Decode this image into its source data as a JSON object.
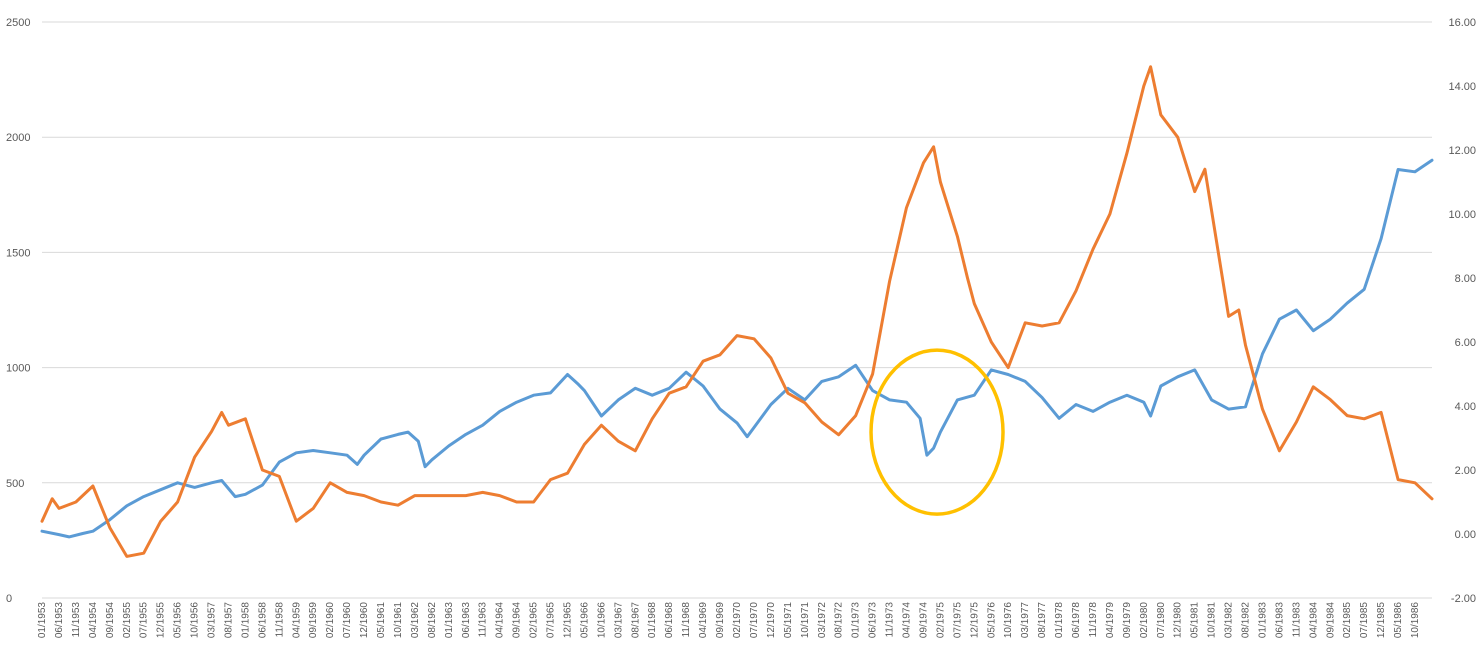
{
  "chart_data": {
    "type": "line",
    "title": "",
    "xlabel": "",
    "ylabel_left": "",
    "ylabel_right": "",
    "grid": true,
    "legend": "none",
    "x_start": "01/1953",
    "x_end": "03/1987",
    "x_tick_labels": [
      "01/1953",
      "06/1953",
      "11/1953",
      "04/1954",
      "09/1954",
      "02/1955",
      "07/1955",
      "12/1955",
      "05/1956",
      "10/1956",
      "03/1957",
      "08/1957",
      "01/1958",
      "06/1958",
      "11/1958",
      "04/1959",
      "09/1959",
      "02/1960",
      "07/1960",
      "12/1960",
      "05/1961",
      "10/1961",
      "03/1962",
      "08/1962",
      "01/1963",
      "06/1963",
      "11/1963",
      "04/1964",
      "09/1964",
      "02/1965",
      "07/1965",
      "12/1965",
      "05/1966",
      "10/1966",
      "03/1967",
      "08/1967",
      "01/1968",
      "06/1968",
      "11/1968",
      "04/1969",
      "09/1969",
      "02/1970",
      "07/1970",
      "12/1970",
      "05/1971",
      "10/1971",
      "03/1972",
      "08/1972",
      "01/1973",
      "06/1973",
      "11/1973",
      "04/1974",
      "09/1974",
      "02/1975",
      "07/1975",
      "12/1975",
      "05/1976",
      "10/1976",
      "03/1977",
      "08/1977",
      "01/1978",
      "06/1978",
      "11/1978",
      "04/1979",
      "09/1979",
      "02/1980",
      "07/1980",
      "12/1980",
      "05/1981",
      "10/1981",
      "03/1982",
      "08/1982",
      "01/1983",
      "06/1983",
      "11/1983",
      "04/1984",
      "09/1984",
      "02/1985",
      "07/1985",
      "12/1985",
      "05/1986",
      "10/1986"
    ],
    "y_left": {
      "min": 0,
      "max": 2500,
      "ticks": [
        0,
        500,
        1000,
        1500,
        2000,
        2500
      ],
      "tick_labels": [
        "0",
        "500",
        "1000",
        "1500",
        "2000",
        "2500"
      ]
    },
    "y_right": {
      "min": -2,
      "max": 16,
      "ticks": [
        -2,
        0,
        2,
        4,
        6,
        8,
        10,
        12,
        14,
        16
      ],
      "tick_labels": [
        "-2.00",
        "0.00",
        "2.00",
        "4.00",
        "6.00",
        "8.00",
        "10.00",
        "12.00",
        "14.00",
        "16.00"
      ]
    },
    "series": [
      {
        "axis": "left",
        "color": "#5b9bd5",
        "points": [
          [
            "01/1953",
            290
          ],
          [
            "06/1953",
            275
          ],
          [
            "09/1953",
            265
          ],
          [
            "01/1954",
            280
          ],
          [
            "04/1954",
            290
          ],
          [
            "09/1954",
            340
          ],
          [
            "02/1955",
            400
          ],
          [
            "07/1955",
            440
          ],
          [
            "12/1955",
            470
          ],
          [
            "05/1956",
            500
          ],
          [
            "10/1956",
            480
          ],
          [
            "03/1957",
            500
          ],
          [
            "06/1957",
            510
          ],
          [
            "10/1957",
            440
          ],
          [
            "01/1958",
            450
          ],
          [
            "06/1958",
            490
          ],
          [
            "11/1958",
            590
          ],
          [
            "04/1959",
            630
          ],
          [
            "09/1959",
            640
          ],
          [
            "02/1960",
            630
          ],
          [
            "07/1960",
            620
          ],
          [
            "10/1960",
            580
          ],
          [
            "12/1960",
            620
          ],
          [
            "05/1961",
            690
          ],
          [
            "10/1961",
            710
          ],
          [
            "01/1962",
            720
          ],
          [
            "04/1962",
            680
          ],
          [
            "06/1962",
            570
          ],
          [
            "08/1962",
            600
          ],
          [
            "01/1963",
            660
          ],
          [
            "06/1963",
            710
          ],
          [
            "11/1963",
            750
          ],
          [
            "04/1964",
            810
          ],
          [
            "09/1964",
            850
          ],
          [
            "02/1965",
            880
          ],
          [
            "07/1965",
            890
          ],
          [
            "12/1965",
            970
          ],
          [
            "03/1966",
            930
          ],
          [
            "05/1966",
            900
          ],
          [
            "10/1966",
            790
          ],
          [
            "03/1967",
            860
          ],
          [
            "08/1967",
            910
          ],
          [
            "01/1968",
            880
          ],
          [
            "06/1968",
            910
          ],
          [
            "11/1968",
            980
          ],
          [
            "04/1969",
            920
          ],
          [
            "09/1969",
            820
          ],
          [
            "02/1970",
            760
          ],
          [
            "05/1970",
            700
          ],
          [
            "07/1970",
            740
          ],
          [
            "12/1970",
            840
          ],
          [
            "05/1971",
            910
          ],
          [
            "10/1971",
            860
          ],
          [
            "03/1972",
            940
          ],
          [
            "08/1972",
            960
          ],
          [
            "01/1973",
            1010
          ],
          [
            "06/1973",
            900
          ],
          [
            "11/1973",
            860
          ],
          [
            "04/1974",
            850
          ],
          [
            "08/1974",
            780
          ],
          [
            "10/1974",
            620
          ],
          [
            "12/1974",
            650
          ],
          [
            "02/1975",
            720
          ],
          [
            "07/1975",
            860
          ],
          [
            "12/1975",
            880
          ],
          [
            "05/1976",
            990
          ],
          [
            "10/1976",
            970
          ],
          [
            "03/1977",
            940
          ],
          [
            "08/1977",
            870
          ],
          [
            "01/1978",
            780
          ],
          [
            "06/1978",
            840
          ],
          [
            "11/1978",
            810
          ],
          [
            "04/1979",
            850
          ],
          [
            "09/1979",
            880
          ],
          [
            "02/1980",
            850
          ],
          [
            "04/1980",
            790
          ],
          [
            "07/1980",
            920
          ],
          [
            "12/1980",
            960
          ],
          [
            "05/1981",
            990
          ],
          [
            "10/1981",
            860
          ],
          [
            "03/1982",
            820
          ],
          [
            "08/1982",
            830
          ],
          [
            "01/1983",
            1060
          ],
          [
            "06/1983",
            1210
          ],
          [
            "11/1983",
            1250
          ],
          [
            "04/1984",
            1160
          ],
          [
            "09/1984",
            1210
          ],
          [
            "02/1985",
            1280
          ],
          [
            "07/1985",
            1340
          ],
          [
            "12/1985",
            1560
          ],
          [
            "05/1986",
            1860
          ],
          [
            "10/1986",
            1850
          ],
          [
            "03/1987",
            1900
          ]
        ]
      },
      {
        "axis": "right",
        "color": "#ed7d31",
        "points": [
          [
            "01/1953",
            0.4
          ],
          [
            "04/1953",
            1.1
          ],
          [
            "06/1953",
            0.8
          ],
          [
            "11/1953",
            1.0
          ],
          [
            "04/1954",
            1.5
          ],
          [
            "09/1954",
            0.2
          ],
          [
            "02/1955",
            -0.7
          ],
          [
            "07/1955",
            -0.6
          ],
          [
            "12/1955",
            0.4
          ],
          [
            "05/1956",
            1.0
          ],
          [
            "10/1956",
            2.4
          ],
          [
            "03/1957",
            3.2
          ],
          [
            "06/1957",
            3.8
          ],
          [
            "08/1957",
            3.4
          ],
          [
            "01/1958",
            3.6
          ],
          [
            "06/1958",
            2.0
          ],
          [
            "11/1958",
            1.8
          ],
          [
            "04/1959",
            0.4
          ],
          [
            "09/1959",
            0.8
          ],
          [
            "02/1960",
            1.6
          ],
          [
            "07/1960",
            1.3
          ],
          [
            "12/1960",
            1.2
          ],
          [
            "05/1961",
            1.0
          ],
          [
            "10/1961",
            0.9
          ],
          [
            "03/1962",
            1.2
          ],
          [
            "08/1962",
            1.2
          ],
          [
            "01/1963",
            1.2
          ],
          [
            "06/1963",
            1.2
          ],
          [
            "11/1963",
            1.3
          ],
          [
            "04/1964",
            1.2
          ],
          [
            "09/1964",
            1.0
          ],
          [
            "02/1965",
            1.0
          ],
          [
            "07/1965",
            1.7
          ],
          [
            "12/1965",
            1.9
          ],
          [
            "05/1966",
            2.8
          ],
          [
            "10/1966",
            3.4
          ],
          [
            "03/1967",
            2.9
          ],
          [
            "08/1967",
            2.6
          ],
          [
            "01/1968",
            3.6
          ],
          [
            "06/1968",
            4.4
          ],
          [
            "11/1968",
            4.6
          ],
          [
            "04/1969",
            5.4
          ],
          [
            "09/1969",
            5.6
          ],
          [
            "02/1970",
            6.2
          ],
          [
            "07/1970",
            6.1
          ],
          [
            "12/1970",
            5.5
          ],
          [
            "05/1971",
            4.4
          ],
          [
            "10/1971",
            4.1
          ],
          [
            "03/1972",
            3.5
          ],
          [
            "08/1972",
            3.1
          ],
          [
            "01/1973",
            3.7
          ],
          [
            "06/1973",
            5.0
          ],
          [
            "11/1973",
            7.9
          ],
          [
            "04/1974",
            10.2
          ],
          [
            "09/1974",
            11.6
          ],
          [
            "12/1974",
            12.1
          ],
          [
            "02/1975",
            11.0
          ],
          [
            "07/1975",
            9.3
          ],
          [
            "10/1975",
            8.0
          ],
          [
            "12/1975",
            7.2
          ],
          [
            "05/1976",
            6.0
          ],
          [
            "10/1976",
            5.2
          ],
          [
            "03/1977",
            6.6
          ],
          [
            "08/1977",
            6.5
          ],
          [
            "01/1978",
            6.6
          ],
          [
            "06/1978",
            7.6
          ],
          [
            "11/1978",
            8.9
          ],
          [
            "04/1979",
            10.0
          ],
          [
            "09/1979",
            11.9
          ],
          [
            "02/1980",
            14.0
          ],
          [
            "04/1980",
            14.6
          ],
          [
            "07/1980",
            13.1
          ],
          [
            "12/1980",
            12.4
          ],
          [
            "05/1981",
            10.7
          ],
          [
            "08/1981",
            11.4
          ],
          [
            "10/1981",
            10.1
          ],
          [
            "03/1982",
            6.8
          ],
          [
            "06/1982",
            7.0
          ],
          [
            "08/1982",
            5.9
          ],
          [
            "01/1983",
            3.9
          ],
          [
            "06/1983",
            2.6
          ],
          [
            "11/1983",
            3.5
          ],
          [
            "04/1984",
            4.6
          ],
          [
            "09/1984",
            4.2
          ],
          [
            "02/1985",
            3.7
          ],
          [
            "07/1985",
            3.6
          ],
          [
            "12/1985",
            3.8
          ],
          [
            "05/1986",
            1.7
          ],
          [
            "10/1986",
            1.6
          ],
          [
            "03/1987",
            1.1
          ]
        ]
      }
    ],
    "annotation": {
      "shape": "ellipse",
      "color": "#ffc000",
      "center_x": "01/1975",
      "center_y_left": 720
    }
  }
}
